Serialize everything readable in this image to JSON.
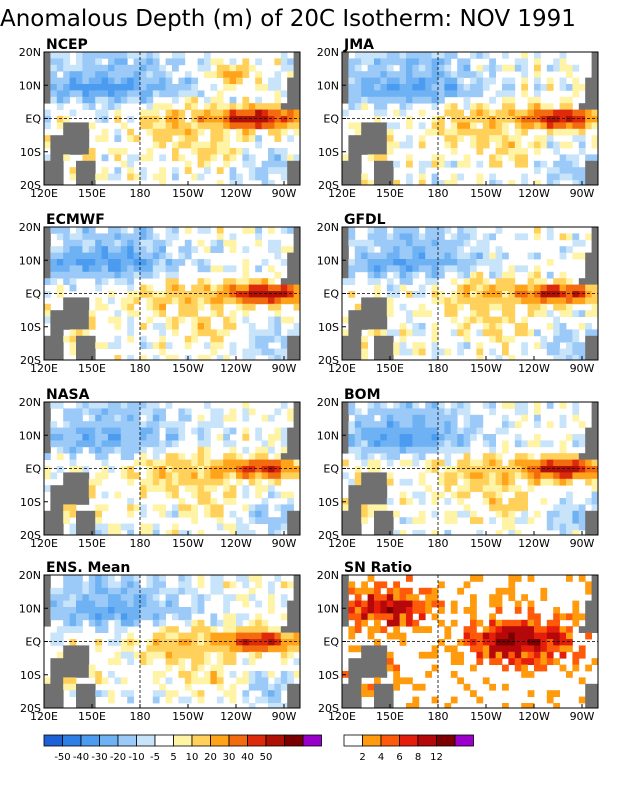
{
  "title": "Anomalous Depth (m) of 20C Isotherm: NOV 1991",
  "lat_labels": [
    "20N",
    "10N",
    "EQ",
    "10S",
    "20S"
  ],
  "lon_labels": [
    "120E",
    "150E",
    "180",
    "150W",
    "120W",
    "90W"
  ],
  "chart_data": [
    {
      "type": "heatmap",
      "name": "NCEP",
      "variable": "anomaly"
    },
    {
      "type": "heatmap",
      "name": "JMA",
      "variable": "anomaly"
    },
    {
      "type": "heatmap",
      "name": "ECMWF",
      "variable": "anomaly"
    },
    {
      "type": "heatmap",
      "name": "GFDL",
      "variable": "anomaly"
    },
    {
      "type": "heatmap",
      "name": "NASA",
      "variable": "anomaly"
    },
    {
      "type": "heatmap",
      "name": "BOM",
      "variable": "anomaly"
    },
    {
      "type": "heatmap",
      "name": "ENS. Mean",
      "variable": "anomaly"
    },
    {
      "type": "heatmap",
      "name": "SN Ratio",
      "variable": "sn_ratio"
    }
  ],
  "anomaly_colorbar": {
    "labels": [
      "-50",
      "-40",
      "-30",
      "-20",
      "-10",
      "-5",
      "5",
      "10",
      "20",
      "30",
      "40",
      "50"
    ],
    "colors": [
      "#1d61d6",
      "#2d7fe6",
      "#4b9bf0",
      "#6eb2f4",
      "#9ccaf8",
      "#c8e4fb",
      "#ffffff",
      "#fff3a6",
      "#ffd15a",
      "#ffa31a",
      "#f26b0f",
      "#dd2a0a",
      "#b01005",
      "#7a0000",
      "#9800c9"
    ]
  },
  "ratio_colorbar": {
    "labels": [
      "2",
      "4",
      "6",
      "8",
      "12"
    ],
    "colors": [
      "#ffffff",
      "#ff9b0d",
      "#ff5a0a",
      "#e41e0a",
      "#b5080a",
      "#7d0000",
      "#9b00cc"
    ]
  },
  "land_color": "#707070"
}
